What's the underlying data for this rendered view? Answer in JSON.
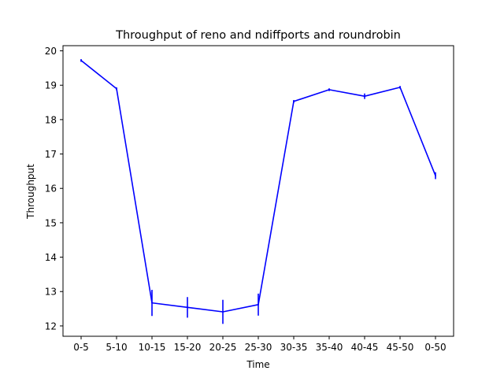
{
  "chart_data": {
    "type": "line",
    "title": "Throughput of reno and ndiffports and roundrobin",
    "xlabel": "Time",
    "ylabel": "Throughput",
    "categories": [
      "0-5",
      "5-10",
      "10-15",
      "15-20",
      "20-25",
      "25-30",
      "30-35",
      "35-40",
      "40-45",
      "45-50",
      "0-50"
    ],
    "series": [
      {
        "values": [
          19.72,
          18.9,
          12.67,
          12.54,
          12.41,
          12.62,
          18.53,
          18.87,
          18.68,
          18.94,
          16.37
        ],
        "errors": [
          0.04,
          0.04,
          0.38,
          0.3,
          0.35,
          0.32,
          0.04,
          0.04,
          0.08,
          0.04,
          0.1
        ],
        "color": "#0000ff"
      }
    ],
    "yticks": [
      12,
      13,
      14,
      15,
      16,
      17,
      18,
      19,
      20
    ],
    "ylim": [
      11.7,
      20.15
    ],
    "grid": false,
    "legend": "none"
  }
}
